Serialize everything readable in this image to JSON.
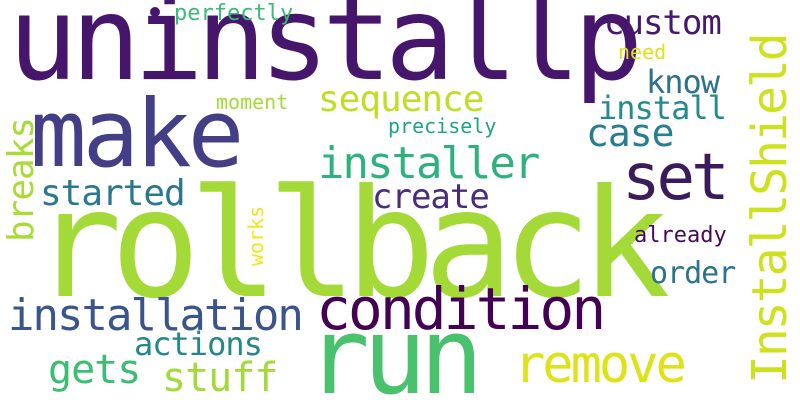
{
  "words": [
    {
      "id": "uninstallp",
      "text": "uninstallp",
      "color": "#46166c"
    },
    {
      "id": "rollback",
      "text": "rollback",
      "color": "#a3da37"
    },
    {
      "id": "make",
      "text": "make",
      "color": "#433e85"
    },
    {
      "id": "run",
      "text": "run",
      "color": "#4ac16d"
    },
    {
      "id": "condition",
      "text": "condition",
      "color": "#440154"
    },
    {
      "id": "set",
      "text": "set",
      "color": "#3b1c5a"
    },
    {
      "id": "remove",
      "text": "remove",
      "color": "#dde318"
    },
    {
      "id": "installshield",
      "text": "InstallShield",
      "color": "#cde11d"
    },
    {
      "id": "installer",
      "text": "installer",
      "color": "#2db27d"
    },
    {
      "id": "installation",
      "text": "installation",
      "color": "#3a548c"
    },
    {
      "id": "sequence",
      "text": "sequence",
      "color": "#bddf26"
    },
    {
      "id": "custom",
      "text": "custom",
      "color": "#46186e"
    },
    {
      "id": "case",
      "text": "case",
      "color": "#277e8e"
    },
    {
      "id": "breaks",
      "text": "breaks",
      "color": "#a8db34"
    },
    {
      "id": "started",
      "text": "started",
      "color": "#2a788e"
    },
    {
      "id": "create",
      "text": "create",
      "color": "#472d7b"
    },
    {
      "id": "stuff",
      "text": "stuff",
      "color": "#a2da37"
    },
    {
      "id": "gets",
      "text": "gets",
      "color": "#3dbc74"
    },
    {
      "id": "actions",
      "text": "actions",
      "color": "#24878e"
    },
    {
      "id": "know",
      "text": "know",
      "color": "#2d718e"
    },
    {
      "id": "install",
      "text": "install",
      "color": "#238a8d"
    },
    {
      "id": "order",
      "text": "order",
      "color": "#2c728e"
    },
    {
      "id": "already",
      "text": "already",
      "color": "#450a5c"
    },
    {
      "id": "perfectly",
      "text": "perfectly",
      "color": "#3cbb75"
    },
    {
      "id": "moment",
      "text": "moment",
      "color": "#a5db36"
    },
    {
      "id": "precisely",
      "text": "precisely",
      "color": "#1fa287"
    },
    {
      "id": "need",
      "text": "need",
      "color": "#dde318"
    },
    {
      "id": "works",
      "text": "works",
      "color": "#f2e51d"
    }
  ],
  "dot_color": "#46166c"
}
